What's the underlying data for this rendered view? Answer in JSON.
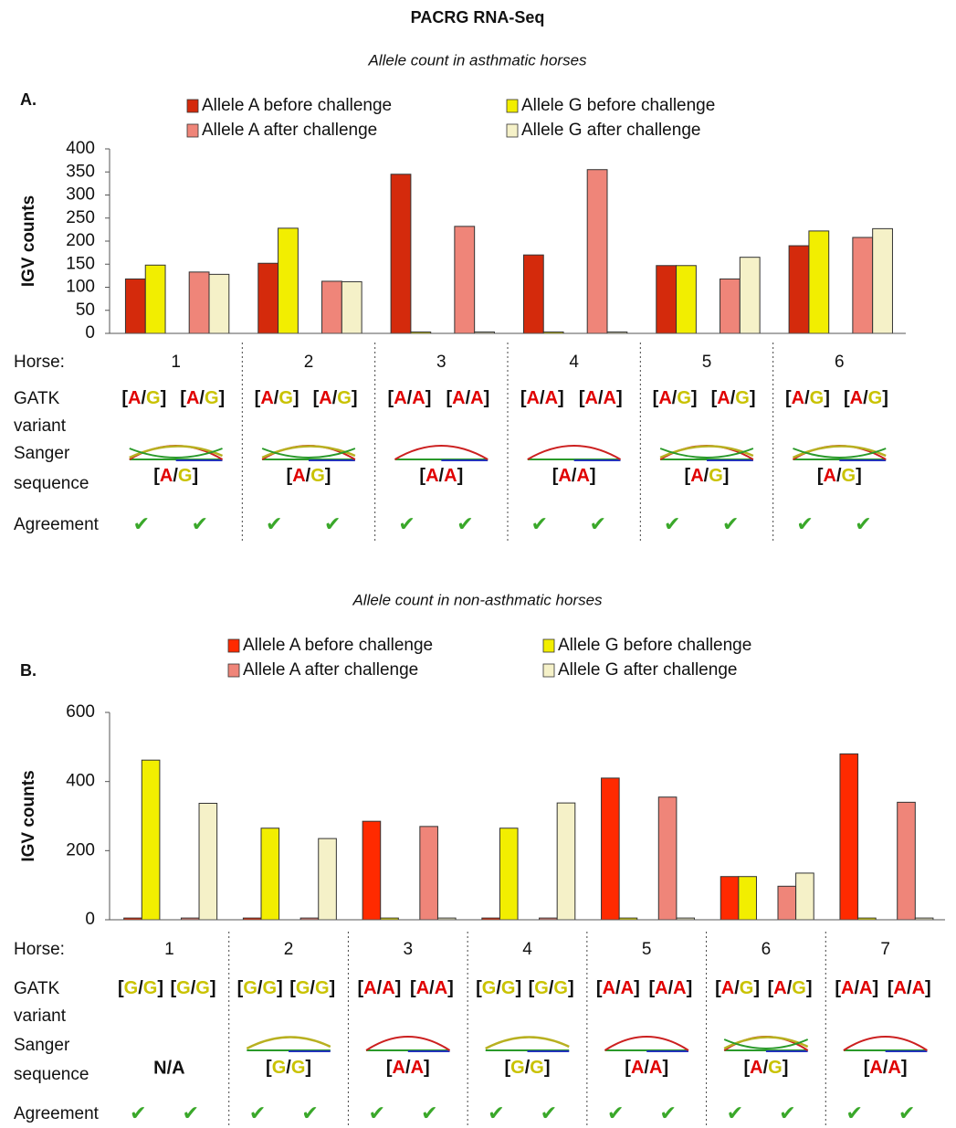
{
  "title": "PACRG RNA-Seq",
  "chart_data": [
    {
      "type": "bar",
      "panel": "A.",
      "subtitle": "Allele count in asthmatic horses",
      "y_label": "IGV counts",
      "categories": [
        "1",
        "2",
        "3",
        "4",
        "5",
        "6"
      ],
      "series": [
        {
          "name": "Allele A before challenge",
          "color": "#d42a0c",
          "values": [
            118,
            152,
            345,
            170,
            147,
            190
          ]
        },
        {
          "name": "Allele G before challenge",
          "color": "#f2ee00",
          "values": [
            148,
            228,
            3,
            3,
            147,
            222
          ]
        },
        {
          "name": "Allele A after challenge",
          "color": "#ef8579",
          "values": [
            133,
            113,
            232,
            355,
            118,
            208
          ]
        },
        {
          "name": "Allele G after challenge",
          "color": "#f5f1c8",
          "values": [
            128,
            112,
            3,
            3,
            165,
            227
          ]
        }
      ],
      "ylim": [
        0,
        400
      ],
      "yticks": [
        0,
        50,
        100,
        150,
        200,
        250,
        300,
        350,
        400
      ],
      "row_labels": {
        "horse": "Horse:",
        "gatk": [
          "GATK",
          "variant"
        ],
        "sanger": [
          "Sanger",
          "sequence"
        ],
        "agreement": "Agreement"
      },
      "gatk": [
        [
          "[A/G]",
          "[A/G]"
        ],
        [
          "[A/G]",
          "[A/G]"
        ],
        [
          "[A/A]",
          "[A/A]"
        ],
        [
          "[A/A]",
          "[A/A]"
        ],
        [
          "[A/G]",
          "[A/G]"
        ],
        [
          "[A/G]",
          "[A/G]"
        ]
      ],
      "sanger": [
        "[A/G]",
        "[A/G]",
        "[A/A]",
        "[A/A]",
        "[A/G]",
        "[A/G]"
      ],
      "agreement": [
        [
          "✔",
          "✔"
        ],
        [
          "✔",
          "✔"
        ],
        [
          "✔",
          "✔"
        ],
        [
          "✔",
          "✔"
        ],
        [
          "✔",
          "✔"
        ],
        [
          "✔",
          "✔"
        ]
      ]
    },
    {
      "type": "bar",
      "panel": "B.",
      "subtitle": "Allele count in non-asthmatic horses",
      "y_label": "IGV counts",
      "categories": [
        "1",
        "2",
        "3",
        "4",
        "5",
        "6",
        "7"
      ],
      "series": [
        {
          "name": "Allele A before challenge",
          "color": "#ff2a00",
          "values": [
            5,
            5,
            285,
            5,
            410,
            125,
            480
          ]
        },
        {
          "name": "Allele G before challenge",
          "color": "#f2ee00",
          "values": [
            462,
            265,
            5,
            265,
            5,
            125,
            5
          ]
        },
        {
          "name": "Allele A after challenge",
          "color": "#ef8579",
          "values": [
            5,
            5,
            270,
            5,
            355,
            97,
            340
          ]
        },
        {
          "name": "Allele G after challenge",
          "color": "#f5f1c8",
          "values": [
            337,
            235,
            5,
            338,
            5,
            135,
            5
          ]
        }
      ],
      "ylim": [
        0,
        600
      ],
      "yticks": [
        0,
        200,
        400,
        600
      ],
      "row_labels": {
        "horse": "Horse:",
        "gatk": [
          "GATK",
          "variant"
        ],
        "sanger": [
          "Sanger",
          "sequence"
        ],
        "agreement": "Agreement"
      },
      "gatk": [
        [
          "[G/G]",
          "[G/G]"
        ],
        [
          "[G/G]",
          "[G/G]"
        ],
        [
          "[A/A]",
          "[A/A]"
        ],
        [
          "[G/G]",
          "[G/G]"
        ],
        [
          "[A/A]",
          "[A/A]"
        ],
        [
          "[A/G]",
          "[A/G]"
        ],
        [
          "[A/A]",
          "[A/A]"
        ]
      ],
      "sanger": [
        "N/A",
        "[G/G]",
        "[A/A]",
        "[G/G]",
        "[A/A]",
        "[A/G]",
        "[A/A]"
      ],
      "agreement": [
        [
          "✔",
          "✔"
        ],
        [
          "✔",
          "✔"
        ],
        [
          "✔",
          "✔"
        ],
        [
          "✔",
          "✔"
        ],
        [
          "✔",
          "✔"
        ],
        [
          "✔",
          "✔"
        ],
        [
          "✔",
          "✔"
        ]
      ]
    }
  ]
}
